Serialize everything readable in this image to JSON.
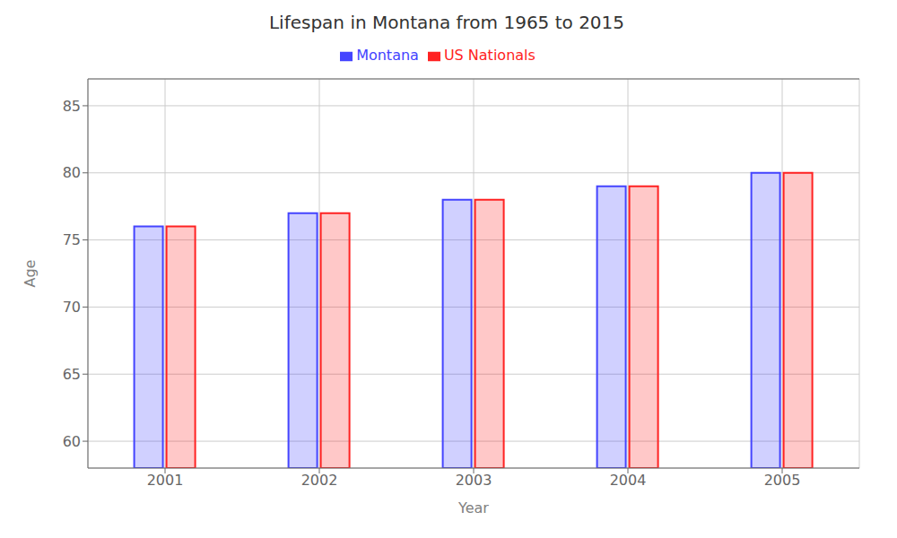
{
  "chart_data": {
    "type": "bar",
    "title": "Lifespan in Montana from 1965 to 2015",
    "xlabel": "Year",
    "ylabel": "Age",
    "categories": [
      "2001",
      "2002",
      "2003",
      "2004",
      "2005"
    ],
    "series": [
      {
        "name": "Montana",
        "color": "#4444ff",
        "values": [
          76,
          77,
          78,
          79,
          80
        ]
      },
      {
        "name": "US Nationals",
        "color": "#ff2222",
        "values": [
          76,
          77,
          78,
          79,
          80
        ]
      }
    ],
    "ylim": [
      58,
      87
    ],
    "yticks": [
      60,
      65,
      70,
      75,
      80,
      85
    ],
    "grid": true,
    "legend": "top"
  }
}
